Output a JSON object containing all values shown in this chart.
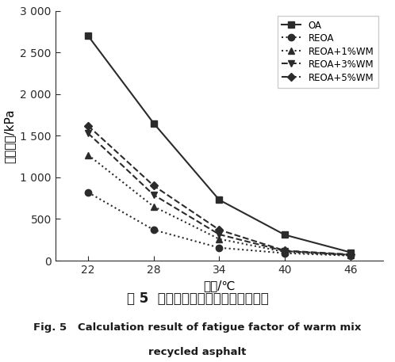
{
  "x": [
    22,
    28,
    34,
    40,
    46
  ],
  "series": [
    {
      "label": "OA",
      "values": [
        2700,
        1650,
        730,
        310,
        100
      ],
      "linestyle": "-",
      "marker": "s",
      "color": "#2b2b2b",
      "linewidth": 1.5,
      "markersize": 6
    },
    {
      "label": "REOA",
      "values": [
        820,
        370,
        155,
        90,
        60
      ],
      "linestyle": "dotted",
      "marker": "o",
      "color": "#2b2b2b",
      "linewidth": 1.5,
      "markersize": 6
    },
    {
      "label": "REOA+1%WM",
      "values": [
        1270,
        650,
        260,
        105,
        65
      ],
      "linestyle": "dotted",
      "marker": "^",
      "color": "#2b2b2b",
      "linewidth": 1.5,
      "markersize": 6
    },
    {
      "label": "REOA+3%WM",
      "values": [
        1530,
        790,
        315,
        115,
        70
      ],
      "linestyle": "dashed",
      "marker": "v",
      "color": "#2b2b2b",
      "linewidth": 1.5,
      "markersize": 6
    },
    {
      "label": "REOA+5%WM",
      "values": [
        1620,
        900,
        370,
        120,
        75
      ],
      "linestyle": "dashed",
      "marker": "D",
      "color": "#2b2b2b",
      "linewidth": 1.5,
      "markersize": 5
    }
  ],
  "xlabel": "温度/℃",
  "ylabel": "疲劳因子/kPa",
  "ylim": [
    0,
    3000
  ],
  "yticks": [
    0,
    500,
    1000,
    1500,
    2000,
    2500,
    3000
  ],
  "ytick_labels": [
    "0",
    "500",
    "1 000",
    "1 500",
    "2 000",
    "2 500",
    "3 000"
  ],
  "xticks": [
    22,
    28,
    34,
    40,
    46
  ],
  "background_color": "#ffffff",
  "title_cn": "图 5  温拌再生氥青疲劳因子计算结果",
  "title_en1": "Fig. 5   Calculation result of fatigue factor of warm mix",
  "title_en2": "recycled asphalt"
}
